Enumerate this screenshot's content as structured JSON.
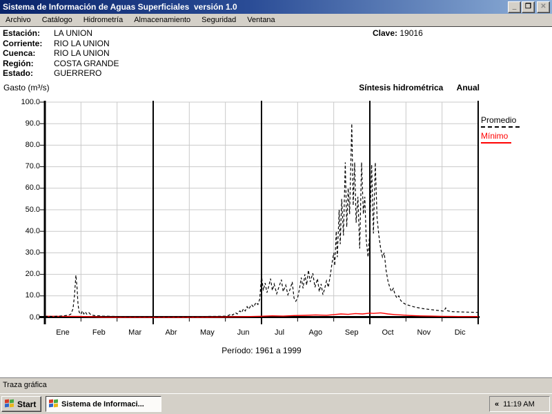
{
  "window": {
    "title": "Sistema de Información de Aguas Superficiales  versión 1.0",
    "controls": {
      "minimize": "_",
      "restore": "❐",
      "close": "✕"
    }
  },
  "menu": {
    "items": [
      "Archivo",
      "Catálogo",
      "Hidrometría",
      "Almacenamiento",
      "Seguridad",
      "Ventana"
    ]
  },
  "station": {
    "rows": [
      {
        "label": "Estación:",
        "value": "LA UNION"
      },
      {
        "label": "Corriente:",
        "value": "RIO LA UNION"
      },
      {
        "label": "Cuenca:",
        "value": "RIO LA UNION"
      },
      {
        "label": "Región:",
        "value": "COSTA GRANDE"
      },
      {
        "label": "Estado:",
        "value": "GUERRERO"
      }
    ],
    "clave_label": "Clave:",
    "clave_value": "19016"
  },
  "chart_data": {
    "type": "line",
    "title": "Síntesis hidrométrica",
    "subtitle": "Anual",
    "ylabel": "Gasto (m³/s)",
    "xlabel": "Período: 1961 a 1999",
    "ylim": [
      0,
      100
    ],
    "yticks": [
      "100.0",
      "90.0",
      "80.0",
      "70.0",
      "60.0",
      "50.0",
      "40.0",
      "30.0",
      "20.0",
      "10.0",
      "0.0"
    ],
    "months": [
      "Ene",
      "Feb",
      "Mar",
      "Abr",
      "May",
      "Jun",
      "Jul",
      "Ago",
      "Sep",
      "Oct",
      "Nov",
      "Dic"
    ],
    "quarter_lines": [
      3,
      6,
      9
    ],
    "grid": true,
    "legend_position": "right",
    "series": [
      {
        "name": "Promedio",
        "color": "#000000",
        "style": "dashed",
        "points": [
          [
            0,
            0.5
          ],
          [
            0.2,
            0.45
          ],
          [
            0.4,
            0.6
          ],
          [
            0.55,
            0.8
          ],
          [
            0.65,
            1.0
          ],
          [
            0.72,
            1.5
          ],
          [
            0.78,
            4
          ],
          [
            0.82,
            10
          ],
          [
            0.86,
            19.6
          ],
          [
            0.89,
            14
          ],
          [
            0.92,
            6
          ],
          [
            0.95,
            2.5
          ],
          [
            1.0,
            1.4
          ],
          [
            1.04,
            3.0
          ],
          [
            1.08,
            1.6
          ],
          [
            1.12,
            2.6
          ],
          [
            1.16,
            1.5
          ],
          [
            1.22,
            2.2
          ],
          [
            1.28,
            1.1
          ],
          [
            1.4,
            0.8
          ],
          [
            1.6,
            0.6
          ],
          [
            1.8,
            0.5
          ],
          [
            2.0,
            0.45
          ],
          [
            2.4,
            0.4
          ],
          [
            2.8,
            0.4
          ],
          [
            3.2,
            0.35
          ],
          [
            3.6,
            0.35
          ],
          [
            4.0,
            0.4
          ],
          [
            4.4,
            0.45
          ],
          [
            4.8,
            0.5
          ],
          [
            5.0,
            0.6
          ],
          [
            5.1,
            1.0
          ],
          [
            5.15,
            1.6
          ],
          [
            5.2,
            1.1
          ],
          [
            5.28,
            2.2
          ],
          [
            5.33,
            1.6
          ],
          [
            5.4,
            3.0
          ],
          [
            5.45,
            2.2
          ],
          [
            5.5,
            4.0
          ],
          [
            5.55,
            3.0
          ],
          [
            5.6,
            5.0
          ],
          [
            5.65,
            3.8
          ],
          [
            5.72,
            6.0
          ],
          [
            5.78,
            4.8
          ],
          [
            5.85,
            7.0
          ],
          [
            5.9,
            6.0
          ],
          [
            5.95,
            8.5
          ],
          [
            6.0,
            19.5
          ],
          [
            6.05,
            12.5
          ],
          [
            6.1,
            16
          ],
          [
            6.15,
            11.5
          ],
          [
            6.2,
            14.5
          ],
          [
            6.25,
            18
          ],
          [
            6.3,
            12.5
          ],
          [
            6.35,
            15.5
          ],
          [
            6.42,
            11
          ],
          [
            6.48,
            14
          ],
          [
            6.55,
            17.5
          ],
          [
            6.6,
            12
          ],
          [
            6.67,
            15
          ],
          [
            6.73,
            10.5
          ],
          [
            6.8,
            13.5
          ],
          [
            6.85,
            16.5
          ],
          [
            6.9,
            9
          ],
          [
            6.95,
            7.5
          ],
          [
            7.0,
            9
          ],
          [
            7.05,
            13
          ],
          [
            7.1,
            18.5
          ],
          [
            7.15,
            13.5
          ],
          [
            7.2,
            20
          ],
          [
            7.25,
            15
          ],
          [
            7.3,
            22
          ],
          [
            7.35,
            16.5
          ],
          [
            7.42,
            20.5
          ],
          [
            7.48,
            14
          ],
          [
            7.55,
            18
          ],
          [
            7.6,
            12
          ],
          [
            7.65,
            15.5
          ],
          [
            7.7,
            10.5
          ],
          [
            7.75,
            13.5
          ],
          [
            7.8,
            17
          ],
          [
            7.85,
            14
          ],
          [
            7.9,
            19
          ],
          [
            7.95,
            25
          ],
          [
            8.0,
            30
          ],
          [
            8.03,
            24
          ],
          [
            8.07,
            40
          ],
          [
            8.1,
            28
          ],
          [
            8.15,
            50
          ],
          [
            8.18,
            34
          ],
          [
            8.22,
            55
          ],
          [
            8.27,
            38
          ],
          [
            8.32,
            72
          ],
          [
            8.36,
            42
          ],
          [
            8.4,
            60
          ],
          [
            8.44,
            48
          ],
          [
            8.5,
            90
          ],
          [
            8.54,
            52
          ],
          [
            8.58,
            72
          ],
          [
            8.62,
            44
          ],
          [
            8.67,
            56
          ],
          [
            8.72,
            32
          ],
          [
            8.77,
            72
          ],
          [
            8.82,
            48
          ],
          [
            8.86,
            56
          ],
          [
            8.9,
            36
          ],
          [
            8.95,
            28
          ],
          [
            9.0,
            40
          ],
          [
            9.05,
            71
          ],
          [
            9.1,
            39
          ],
          [
            9.15,
            72
          ],
          [
            9.2,
            46
          ],
          [
            9.25,
            38
          ],
          [
            9.3,
            32
          ],
          [
            9.35,
            28
          ],
          [
            9.4,
            30
          ],
          [
            9.45,
            22
          ],
          [
            9.5,
            17
          ],
          [
            9.55,
            14
          ],
          [
            9.6,
            12
          ],
          [
            9.65,
            13.5
          ],
          [
            9.7,
            10.5
          ],
          [
            9.75,
            9
          ],
          [
            9.8,
            10
          ],
          [
            9.85,
            8
          ],
          [
            9.9,
            7
          ],
          [
            9.95,
            6.5
          ],
          [
            10.0,
            6
          ],
          [
            10.1,
            5.5
          ],
          [
            10.2,
            5
          ],
          [
            10.3,
            4.6
          ],
          [
            10.4,
            4.3
          ],
          [
            10.5,
            4
          ],
          [
            10.6,
            3.8
          ],
          [
            10.7,
            3.6
          ],
          [
            10.8,
            3.4
          ],
          [
            10.9,
            3.2
          ],
          [
            11.0,
            3.0
          ],
          [
            11.05,
            2.9
          ],
          [
            11.1,
            4.4
          ],
          [
            11.15,
            3.1
          ],
          [
            11.25,
            2.7
          ],
          [
            11.4,
            2.6
          ],
          [
            11.6,
            2.5
          ],
          [
            11.8,
            2.4
          ],
          [
            12.0,
            2.3
          ]
        ]
      },
      {
        "name": "Mínimo",
        "color": "#ff0000",
        "style": "solid",
        "points": [
          [
            0,
            0.55
          ],
          [
            0.5,
            0.5
          ],
          [
            1.0,
            0.45
          ],
          [
            1.3,
            0.3
          ],
          [
            1.6,
            0.1
          ],
          [
            2.0,
            0.05
          ],
          [
            2.5,
            0.05
          ],
          [
            3.0,
            0.05
          ],
          [
            3.5,
            0.05
          ],
          [
            4.0,
            0.05
          ],
          [
            4.5,
            0.1
          ],
          [
            5.0,
            0.2
          ],
          [
            5.5,
            0.35
          ],
          [
            5.8,
            0.45
          ],
          [
            6.0,
            0.55
          ],
          [
            6.3,
            0.75
          ],
          [
            6.6,
            0.6
          ],
          [
            6.9,
            0.85
          ],
          [
            7.2,
            0.95
          ],
          [
            7.5,
            1.15
          ],
          [
            7.8,
            1.0
          ],
          [
            8.0,
            1.3
          ],
          [
            8.2,
            1.6
          ],
          [
            8.4,
            1.4
          ],
          [
            8.6,
            1.8
          ],
          [
            8.8,
            1.6
          ],
          [
            9.0,
            2.0
          ],
          [
            9.1,
            1.85
          ],
          [
            9.3,
            2.1
          ],
          [
            9.5,
            1.6
          ],
          [
            9.7,
            1.3
          ],
          [
            9.9,
            1.1
          ],
          [
            10.1,
            0.9
          ],
          [
            10.4,
            0.7
          ],
          [
            10.7,
            0.6
          ],
          [
            11.0,
            0.5
          ],
          [
            11.3,
            0.45
          ],
          [
            11.6,
            0.4
          ],
          [
            12.0,
            0.4
          ]
        ]
      }
    ]
  },
  "statusbar": {
    "text": "Traza gráfica"
  },
  "taskbar": {
    "start_label": "Start",
    "task_label": "Sistema de Informaci...",
    "tray_chevron": "«",
    "clock": "11:19 AM"
  },
  "colors": {
    "titlebar_start": "#0a246a",
    "titlebar_end": "#8fb0d8",
    "chrome_gray": "#d4d0c8",
    "grid_gray": "#c9c9c9",
    "promedio": "#000000",
    "minimo": "#ff0000"
  }
}
